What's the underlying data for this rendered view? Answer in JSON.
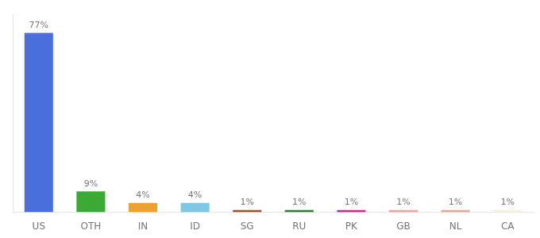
{
  "chart_data": {
    "type": "bar",
    "categories": [
      "US",
      "OTH",
      "IN",
      "ID",
      "SG",
      "RU",
      "PK",
      "GB",
      "NL",
      "CA"
    ],
    "values": [
      77,
      9,
      4,
      4,
      1,
      1,
      1,
      1,
      1,
      1
    ],
    "value_labels": [
      "77%",
      "9%",
      "4%",
      "4%",
      "1%",
      "1%",
      "1%",
      "1%",
      "1%",
      "1%"
    ],
    "colors": [
      "#4a6fdc",
      "#3aaa35",
      "#f0a030",
      "#7ec8e3",
      "#a0522d",
      "#2e7d32",
      "#e91e8c",
      "#f4a0a0",
      "#e8a898",
      "#f5f0dc"
    ],
    "ylim": [
      0,
      85
    ],
    "grid": false,
    "data_labels": true,
    "tick_labels": "x"
  }
}
